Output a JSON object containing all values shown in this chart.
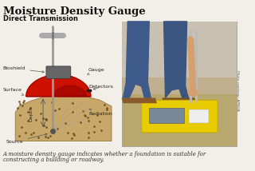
{
  "title": "Moisture Density Gauge",
  "subtitle": "Direct Transmission",
  "caption_line1": "A moisture density gauge indicates whether a foundation is suitable for",
  "caption_line2": "constructing a building or roadway.",
  "bg_color": "#f2efe8",
  "photo_credit": "Photo courtesy: APNGA",
  "soil_color": "#c8a86a",
  "soil_edge": "#a08040",
  "gauge_red": "#cc1100",
  "gauge_dark_red": "#8b0000",
  "bioshield_color": "#666666",
  "rod_color": "#999999",
  "handle_color": "#aaaaaa",
  "source_color": "#555555",
  "dot_color": "#6b4a20",
  "label_color": "#222222",
  "arrow_color": "#555555",
  "photo_bg": "#c8b898",
  "photo_ground": "#b8a878",
  "photo_sky": "#c0b8a8",
  "jeans_color": "#3d5a8a",
  "shoe_color": "#8B5A2B",
  "yellow_gauge": "#e8cc00",
  "yellow_gauge_dark": "#c8aa00",
  "hand_color": "#d4a070",
  "rod2_color": "#bbbbbb"
}
